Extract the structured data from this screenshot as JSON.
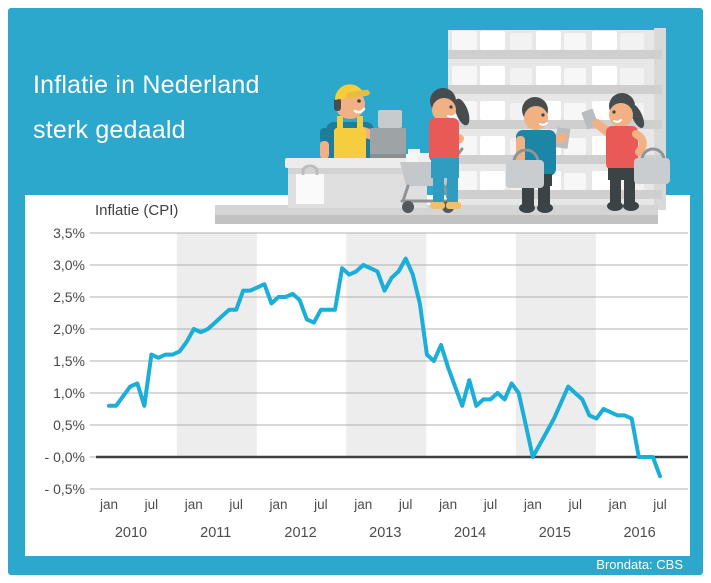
{
  "header": {
    "title_line1": "Inflatie in Nederland",
    "title_line2": "sterk gedaald"
  },
  "footer": {
    "source_label": "Brondata: CBS"
  },
  "colors": {
    "background_teal": "#2ba8cc",
    "line_cyan": "#1aaed8",
    "panel_white": "#ffffff",
    "year_band_gray": "#ededed",
    "zero_line_dark": "#3e3e3e"
  },
  "chart_data": {
    "type": "line",
    "title": "Inflatie (CPI)",
    "unit": "%",
    "x_start": "jan 2010",
    "x_end": "jul 2016",
    "points_per_month": 1,
    "values": [
      0.8,
      0.8,
      0.95,
      1.1,
      1.15,
      0.8,
      1.6,
      1.55,
      1.6,
      1.6,
      1.65,
      1.8,
      2.0,
      1.95,
      2.0,
      2.1,
      2.2,
      2.3,
      2.3,
      2.6,
      2.6,
      2.65,
      2.7,
      2.4,
      2.5,
      2.5,
      2.55,
      2.45,
      2.15,
      2.1,
      2.3,
      2.3,
      2.3,
      2.95,
      2.85,
      2.9,
      3.0,
      2.95,
      2.9,
      2.6,
      2.8,
      2.9,
      3.1,
      2.85,
      2.4,
      1.6,
      1.5,
      1.75,
      1.4,
      1.1,
      0.8,
      1.2,
      0.8,
      0.9,
      0.9,
      1.0,
      0.9,
      1.15,
      1.0,
      0.5,
      0.0,
      0.2,
      0.4,
      0.6,
      0.85,
      1.1,
      1.0,
      0.9,
      0.65,
      0.6,
      0.75,
      0.7,
      0.65,
      0.65,
      0.6,
      0.0,
      0.0,
      0.0,
      -0.3
    ],
    "y_axis": {
      "tick_values": [
        3.5,
        3.0,
        2.5,
        2.0,
        1.5,
        1.0,
        0.5,
        0.0,
        -0.5
      ],
      "tick_labels": [
        "3,5%",
        "3,0%",
        "2,5%",
        "2,0%",
        "1,5%",
        "1,0%",
        "0,5%",
        "- 0,0%",
        "- 0,5%"
      ]
    },
    "x_axis": {
      "month_tick_labels": [
        "jan",
        "jul"
      ],
      "year_labels": [
        "2010",
        "2011",
        "2012",
        "2013",
        "2014",
        "2015",
        "2016"
      ]
    },
    "ylim": [
      -0.5,
      3.5
    ],
    "grid": true,
    "zero_line": true,
    "shaded_year_bands": [
      "2011",
      "2013",
      "2015"
    ],
    "legend_position": "none",
    "line_color": "#1aaed8"
  }
}
